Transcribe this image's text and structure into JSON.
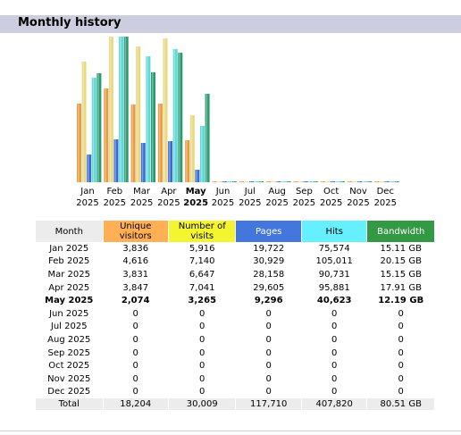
{
  "header": {
    "title": "Monthly history"
  },
  "colors": {
    "unique": "#e89a40",
    "visits": "#e8d880",
    "pages": "#3a6ad4",
    "hits": "#5cd8d8",
    "bandwidth": "#2a9a72"
  },
  "months": [
    {
      "label": "Jan",
      "year": "2025",
      "unique": "3,836",
      "visits": "5,916",
      "pages": "19,722",
      "hits": "75,574",
      "bandwidth": "15.11 GB",
      "current": false
    },
    {
      "label": "Feb",
      "year": "2025",
      "unique": "4,616",
      "visits": "7,140",
      "pages": "30,929",
      "hits": "105,011",
      "bandwidth": "20.15 GB",
      "current": false
    },
    {
      "label": "Mar",
      "year": "2025",
      "unique": "3,831",
      "visits": "6,647",
      "pages": "28,158",
      "hits": "90,731",
      "bandwidth": "15.15 GB",
      "current": false
    },
    {
      "label": "Apr",
      "year": "2025",
      "unique": "3,847",
      "visits": "7,041",
      "pages": "29,605",
      "hits": "95,881",
      "bandwidth": "17.91 GB",
      "current": false
    },
    {
      "label": "May",
      "year": "2025",
      "unique": "2,074",
      "visits": "3,265",
      "pages": "9,296",
      "hits": "40,623",
      "bandwidth": "12.19 GB",
      "current": true
    },
    {
      "label": "Jun",
      "year": "2025",
      "unique": "0",
      "visits": "0",
      "pages": "0",
      "hits": "0",
      "bandwidth": "0",
      "current": false
    },
    {
      "label": "Jul",
      "year": "2025",
      "unique": "0",
      "visits": "0",
      "pages": "0",
      "hits": "0",
      "bandwidth": "0",
      "current": false
    },
    {
      "label": "Aug",
      "year": "2025",
      "unique": "0",
      "visits": "0",
      "pages": "0",
      "hits": "0",
      "bandwidth": "0",
      "current": false
    },
    {
      "label": "Sep",
      "year": "2025",
      "unique": "0",
      "visits": "0",
      "pages": "0",
      "hits": "0",
      "bandwidth": "0",
      "current": false
    },
    {
      "label": "Oct",
      "year": "2025",
      "unique": "0",
      "visits": "0",
      "pages": "0",
      "hits": "0",
      "bandwidth": "0",
      "current": false
    },
    {
      "label": "Nov",
      "year": "2025",
      "unique": "0",
      "visits": "0",
      "pages": "0",
      "hits": "0",
      "bandwidth": "0",
      "current": false
    },
    {
      "label": "Dec",
      "year": "2025",
      "unique": "0",
      "visits": "0",
      "pages": "0",
      "hits": "0",
      "bandwidth": "0",
      "current": false
    }
  ],
  "table": {
    "headers": {
      "month": "Month",
      "unique": "Unique visitors",
      "visits": "Number of visits",
      "pages": "Pages",
      "hits": "Hits",
      "bandwidth": "Bandwidth"
    },
    "total": {
      "label": "Total",
      "unique": "18,204",
      "visits": "30,009",
      "pages": "117,710",
      "hits": "407,820",
      "bandwidth": "80.51 GB"
    }
  },
  "chart_data": {
    "type": "bar",
    "categories": [
      "Jan 2025",
      "Feb 2025",
      "Mar 2025",
      "Apr 2025",
      "May 2025",
      "Jun 2025",
      "Jul 2025",
      "Aug 2025",
      "Sep 2025",
      "Oct 2025",
      "Nov 2025",
      "Dec 2025"
    ],
    "series": [
      {
        "name": "Unique visitors",
        "values": [
          3836,
          4616,
          3831,
          3847,
          2074,
          0,
          0,
          0,
          0,
          0,
          0,
          0
        ]
      },
      {
        "name": "Number of visits",
        "values": [
          5916,
          7140,
          6647,
          7041,
          3265,
          0,
          0,
          0,
          0,
          0,
          0,
          0
        ]
      },
      {
        "name": "Pages",
        "values": [
          19722,
          30929,
          28158,
          29605,
          9296,
          0,
          0,
          0,
          0,
          0,
          0,
          0
        ]
      },
      {
        "name": "Hits",
        "values": [
          75574,
          105011,
          90731,
          95881,
          40623,
          0,
          0,
          0,
          0,
          0,
          0,
          0
        ]
      },
      {
        "name": "Bandwidth",
        "values": [
          15.11,
          20.15,
          15.15,
          17.91,
          12.19,
          0,
          0,
          0,
          0,
          0,
          0,
          0
        ]
      }
    ]
  }
}
